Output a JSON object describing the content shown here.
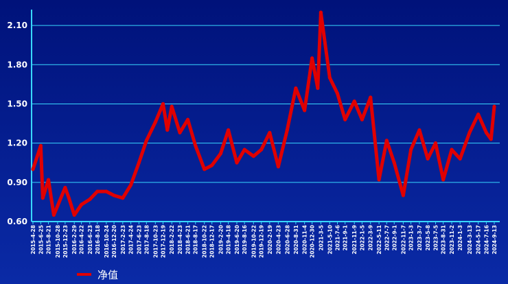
{
  "chart_data": {
    "type": "line",
    "title": "",
    "xlabel": "",
    "ylabel": "",
    "ylim": [
      0.6,
      2.2
    ],
    "y_ticks": [
      "0.60",
      "0.90",
      "1.20",
      "1.50",
      "1.80",
      "2.10"
    ],
    "x_tick_labels": [
      "2015-4-28",
      "2015-6-25",
      "2015-8-21",
      "2015-10-28",
      "2015-12-23",
      "2016-2-29",
      "2016-4-22",
      "2016-6-23",
      "2016-8-18",
      "2016-10-24",
      "2016-12-20",
      "2017-2-23",
      "2017-4-24",
      "2017-6-23",
      "2017-8-18",
      "2017-10-23",
      "2017-12-19",
      "2018-2-22",
      "2018-4-23",
      "2018-6-21",
      "2018-8-17",
      "2018-10-22",
      "2018-12-17",
      "2019-2-20",
      "2019-4-18",
      "2019-6-20",
      "2019-8-16",
      "2019-10-22",
      "2019-12-19",
      "2020-2-19",
      "2020-4-23",
      "2020-6-28",
      "2020-8-31",
      "2020-11-4",
      "2020-12-30",
      "2021-3-5",
      "2021-5-10",
      "2021-7-6",
      "2021-9-1",
      "2021-11-9",
      "2022-1-5",
      "2022-3-9",
      "2022-5-11",
      "2022-7-7",
      "2022-9-1",
      "2022-11-7",
      "2023-1-3",
      "2023-3-7",
      "2023-5-8",
      "2023-7-5",
      "2023-8-31",
      "2023-11-2",
      "2024-1-3",
      "2024-3-13",
      "2024-5-17",
      "2024-7-16",
      "2024-9-13"
    ],
    "grid": true,
    "legend_position": "bottom-left",
    "colors": {
      "line": "#e00000",
      "grid": "#38d8ff",
      "axis_text": "#ffffff"
    },
    "series": [
      {
        "name": "净值",
        "x": [
          "2015-4-28",
          "2015-6-25",
          "2015-7-10",
          "2015-8-21",
          "2015-9-30",
          "2015-10-28",
          "2015-12-23",
          "2016-1-20",
          "2016-2-29",
          "2016-4-22",
          "2016-6-23",
          "2016-8-18",
          "2016-10-24",
          "2016-12-20",
          "2017-2-23",
          "2017-4-24",
          "2017-6-23",
          "2017-8-18",
          "2017-10-23",
          "2017-12-19",
          "2018-1-20",
          "2018-2-22",
          "2018-4-23",
          "2018-6-21",
          "2018-8-17",
          "2018-10-22",
          "2018-12-17",
          "2019-2-20",
          "2019-4-18",
          "2019-6-20",
          "2019-8-16",
          "2019-10-22",
          "2019-12-19",
          "2020-2-19",
          "2020-4-23",
          "2020-6-28",
          "2020-8-31",
          "2020-11-4",
          "2020-12-30",
          "2021-2-10",
          "2021-3-5",
          "2021-5-10",
          "2021-7-6",
          "2021-9-1",
          "2021-11-9",
          "2022-1-5",
          "2022-3-9",
          "2022-5-11",
          "2022-7-7",
          "2022-9-1",
          "2022-11-7",
          "2023-1-3",
          "2023-3-7",
          "2023-5-8",
          "2023-7-5",
          "2023-8-31",
          "2023-11-2",
          "2024-1-3",
          "2024-3-13",
          "2024-5-17",
          "2024-7-16",
          "2024-8-20",
          "2024-9-13"
        ],
        "y": [
          1.0,
          1.18,
          0.78,
          0.92,
          0.65,
          0.72,
          0.86,
          0.78,
          0.65,
          0.73,
          0.77,
          0.83,
          0.83,
          0.8,
          0.78,
          0.88,
          1.05,
          1.22,
          1.36,
          1.5,
          1.3,
          1.48,
          1.28,
          1.38,
          1.18,
          1.0,
          1.03,
          1.12,
          1.3,
          1.05,
          1.15,
          1.1,
          1.15,
          1.28,
          1.02,
          1.3,
          1.62,
          1.45,
          1.85,
          1.62,
          2.2,
          1.7,
          1.58,
          1.38,
          1.52,
          1.38,
          1.55,
          0.92,
          1.22,
          1.05,
          0.8,
          1.15,
          1.3,
          1.08,
          1.2,
          0.92,
          1.15,
          1.08,
          1.28,
          1.42,
          1.28,
          1.23,
          1.48
        ]
      }
    ]
  }
}
